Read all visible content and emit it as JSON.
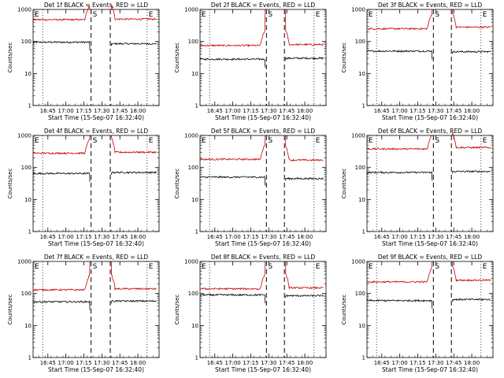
{
  "colors": {
    "events": "#000000",
    "lld": "#cc0000",
    "axis": "#000000",
    "background": "#ffffff"
  },
  "chart_data": [
    {
      "type": "line",
      "title": "Det 1f BLACK = Events, RED = LLD",
      "xlabel": "Start Time (15-Sep-07 16:32:40)",
      "ylabel": "Counts/sec",
      "y_scale": "log",
      "ylim": [
        1,
        1000
      ],
      "xtick_labels": [
        "16:45",
        "17:00",
        "17:15",
        "17:30",
        "17:45",
        "18:00"
      ],
      "ytick_labels": [
        "1",
        "10",
        "100",
        "1000"
      ],
      "markers": [
        "E",
        "S",
        "E"
      ],
      "series": [
        {
          "color": "black",
          "pre_level": 95,
          "post_level": 85,
          "pre_end": "17:20",
          "post_start": "17:38"
        },
        {
          "color": "red",
          "pre_level": 480,
          "post_level": 500,
          "pre_end": "17:20",
          "post_start": "17:38"
        }
      ]
    },
    {
      "type": "line",
      "title": "Det 2f BLACK = Events, RED = LLD",
      "xlabel": "Start Time (15-Sep-07 16:32:40)",
      "ylabel": "Counts/sec",
      "y_scale": "log",
      "ylim": [
        1,
        1000
      ],
      "xtick_labels": [
        "16:45",
        "17:00",
        "17:15",
        "17:30",
        "17:45",
        "18:00"
      ],
      "ytick_labels": [
        "1",
        "10",
        "100",
        "1000"
      ],
      "markers": [
        "E",
        "S",
        "E"
      ],
      "series": [
        {
          "color": "black",
          "pre_level": 28,
          "post_level": 30,
          "pre_end": "17:27",
          "post_start": "17:44"
        },
        {
          "color": "red",
          "pre_level": 75,
          "post_level": 80,
          "pre_end": "17:27",
          "post_start": "17:44"
        }
      ]
    },
    {
      "type": "line",
      "title": "Det 3f BLACK = Events, RED = LLD",
      "xlabel": "Start Time (15-Sep-07 16:32:40)",
      "ylabel": "Counts/sec",
      "y_scale": "log",
      "ylim": [
        1,
        1000
      ],
      "xtick_labels": [
        "16:45",
        "17:00",
        "17:15",
        "17:30",
        "17:45",
        "18:00"
      ],
      "ytick_labels": [
        "1",
        "10",
        "100",
        "1000"
      ],
      "markers": [
        "E",
        "S",
        "E"
      ],
      "series": [
        {
          "color": "black",
          "pre_level": 50,
          "post_level": 48,
          "pre_end": "17:27",
          "post_start": "17:44"
        },
        {
          "color": "red",
          "pre_level": 250,
          "post_level": 280,
          "pre_end": "17:27",
          "post_start": "17:44"
        }
      ]
    },
    {
      "type": "line",
      "title": "Det 4f BLACK = Events, RED = LLD",
      "xlabel": "Start Time (15-Sep-07 16:32:40)",
      "ylabel": "Counts/sec",
      "y_scale": "log",
      "ylim": [
        1,
        1000
      ],
      "xtick_labels": [
        "16:45",
        "17:00",
        "17:15",
        "17:30",
        "17:45",
        "18:00"
      ],
      "ytick_labels": [
        "1",
        "10",
        "100",
        "1000"
      ],
      "markers": [
        "E",
        "S",
        "E"
      ],
      "series": [
        {
          "color": "black",
          "pre_level": 65,
          "post_level": 70,
          "pre_end": "17:20",
          "post_start": "17:38"
        },
        {
          "color": "red",
          "pre_level": 280,
          "post_level": 300,
          "pre_end": "17:20",
          "post_start": "17:38"
        }
      ]
    },
    {
      "type": "line",
      "title": "Det 5f BLACK = Events, RED = LLD",
      "xlabel": "Start Time (15-Sep-07 16:32:40)",
      "ylabel": "Counts/sec",
      "y_scale": "log",
      "ylim": [
        1,
        1000
      ],
      "xtick_labels": [
        "16:45",
        "17:00",
        "17:15",
        "17:30",
        "17:45",
        "18:00"
      ],
      "ytick_labels": [
        "1",
        "10",
        "100",
        "1000"
      ],
      "markers": [
        "E",
        "S",
        "E"
      ],
      "series": [
        {
          "color": "black",
          "pre_level": 50,
          "post_level": 45,
          "pre_end": "17:27",
          "post_start": "17:44"
        },
        {
          "color": "red",
          "pre_level": 180,
          "post_level": 170,
          "pre_end": "17:27",
          "post_start": "17:44"
        }
      ]
    },
    {
      "type": "line",
      "title": "Det 6f BLACK = Events, RED = LLD",
      "xlabel": "Start Time (15-Sep-07 16:32:40)",
      "ylabel": "Counts/sec",
      "y_scale": "log",
      "ylim": [
        1,
        1000
      ],
      "xtick_labels": [
        "16:45",
        "17:00",
        "17:15",
        "17:30",
        "17:45",
        "18:00"
      ],
      "ytick_labels": [
        "1",
        "10",
        "100",
        "1000"
      ],
      "markers": [
        "E",
        "S",
        "E"
      ],
      "series": [
        {
          "color": "black",
          "pre_level": 70,
          "post_level": 75,
          "pre_end": "17:27",
          "post_start": "17:44"
        },
        {
          "color": "red",
          "pre_level": 380,
          "post_level": 420,
          "pre_end": "17:27",
          "post_start": "17:44"
        }
      ]
    },
    {
      "type": "line",
      "title": "Det 7f BLACK = Events, RED = LLD",
      "xlabel": "Start Time (15-Sep-07 16:32:40)",
      "ylabel": "Counts/sec",
      "y_scale": "log",
      "ylim": [
        1,
        1000
      ],
      "xtick_labels": [
        "16:45",
        "17:00",
        "17:15",
        "17:30",
        "17:45",
        "18:00"
      ],
      "ytick_labels": [
        "1",
        "10",
        "100",
        "1000"
      ],
      "markers": [
        "E",
        "S",
        "E"
      ],
      "series": [
        {
          "color": "black",
          "pre_level": 55,
          "post_level": 58,
          "pre_end": "17:20",
          "post_start": "17:38"
        },
        {
          "color": "red",
          "pre_level": 130,
          "post_level": 140,
          "pre_end": "17:20",
          "post_start": "17:38"
        }
      ]
    },
    {
      "type": "line",
      "title": "Det 8f BLACK = Events, RED = LLD",
      "xlabel": "Start Time (15-Sep-07 16:32:40)",
      "ylabel": "Counts/sec",
      "y_scale": "log",
      "ylim": [
        1,
        1000
      ],
      "xtick_labels": [
        "16:45",
        "17:00",
        "17:15",
        "17:30",
        "17:45",
        "18:00"
      ],
      "ytick_labels": [
        "1",
        "10",
        "100",
        "1000"
      ],
      "markers": [
        "E",
        "S",
        "E"
      ],
      "series": [
        {
          "color": "black",
          "pre_level": 90,
          "post_level": 85,
          "pre_end": "17:27",
          "post_start": "17:44"
        },
        {
          "color": "red",
          "pre_level": 140,
          "post_level": 150,
          "pre_end": "17:27",
          "post_start": "17:44"
        }
      ]
    },
    {
      "type": "line",
      "title": "Det 9f BLACK = Events, RED = LLD",
      "xlabel": "Start Time (15-Sep-07 16:32:40)",
      "ylabel": "Counts/sec",
      "y_scale": "log",
      "ylim": [
        1,
        1000
      ],
      "xtick_labels": [
        "16:45",
        "17:00",
        "17:15",
        "17:30",
        "17:45",
        "18:00"
      ],
      "ytick_labels": [
        "1",
        "10",
        "100",
        "1000"
      ],
      "markers": [
        "E",
        "S",
        "E"
      ],
      "series": [
        {
          "color": "black",
          "pre_level": 60,
          "post_level": 65,
          "pre_end": "17:27",
          "post_start": "17:44"
        },
        {
          "color": "red",
          "pre_level": 230,
          "post_level": 260,
          "pre_end": "17:27",
          "post_start": "17:44"
        }
      ]
    }
  ]
}
